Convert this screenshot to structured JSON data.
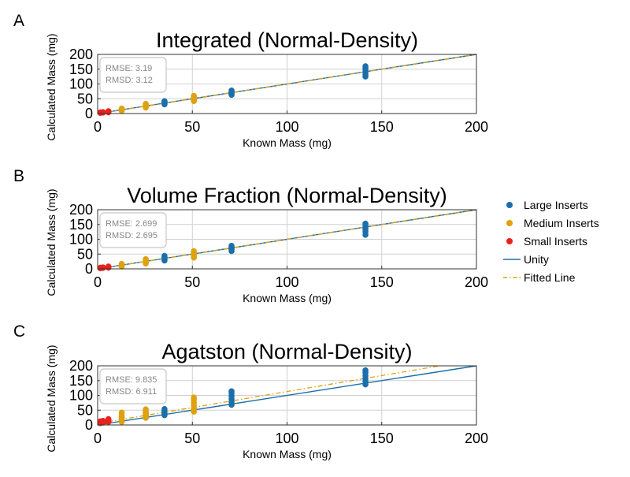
{
  "legend": {
    "placement": "right",
    "entries": [
      {
        "label": "Large Inserts",
        "kind": "dot",
        "color": "#1a6fab"
      },
      {
        "label": "Medium Inserts",
        "kind": "dot",
        "color": "#e0a10f"
      },
      {
        "label": "Small Inserts",
        "kind": "dot",
        "color": "#e8221c"
      },
      {
        "label": "Unity",
        "kind": "solid",
        "color": "#1a6fab"
      },
      {
        "label": "Fitted Line",
        "kind": "dashdot",
        "color": "#e0a10f"
      }
    ]
  },
  "chart_data": [
    {
      "panel_label": "A",
      "type": "scatter",
      "title": "Integrated (Normal-Density)",
      "xlabel": "Known Mass (mg)",
      "ylabel": "Calculated Mass (mg)",
      "xlim": [
        0,
        200
      ],
      "ylim": [
        0,
        200
      ],
      "xticks": [
        "0",
        "50",
        "100",
        "150",
        "200"
      ],
      "yticks": [
        "0",
        "50",
        "100",
        "150",
        "200"
      ],
      "grid": true,
      "stats": [
        "RMSE: 3.19",
        "RMSD: 3.12"
      ],
      "fitted_line": {
        "slope": 1.0,
        "intercept": 0
      },
      "series": [
        {
          "name": "Large Inserts",
          "color": "#1a6fab",
          "points": [
            [
              35.3,
              31
            ],
            [
              35.3,
              34
            ],
            [
              35.3,
              37
            ],
            [
              35.3,
              40
            ],
            [
              35.3,
              42
            ],
            [
              70.7,
              63
            ],
            [
              70.7,
              66
            ],
            [
              70.7,
              70
            ],
            [
              70.7,
              74
            ],
            [
              70.7,
              78
            ],
            [
              141.4,
              125
            ],
            [
              141.4,
              132
            ],
            [
              141.4,
              140
            ],
            [
              141.4,
              148
            ],
            [
              141.4,
              155
            ],
            [
              141.4,
              160
            ]
          ]
        },
        {
          "name": "Medium Inserts",
          "color": "#e0a10f",
          "points": [
            [
              12.7,
              9
            ],
            [
              12.7,
              12
            ],
            [
              12.7,
              15
            ],
            [
              12.7,
              17
            ],
            [
              25.4,
              20
            ],
            [
              25.4,
              24
            ],
            [
              25.4,
              27
            ],
            [
              25.4,
              30
            ],
            [
              25.4,
              33
            ],
            [
              50.8,
              42
            ],
            [
              50.8,
              46
            ],
            [
              50.8,
              50
            ],
            [
              50.8,
              55
            ],
            [
              50.8,
              60
            ]
          ]
        },
        {
          "name": "Small Inserts",
          "color": "#e8221c",
          "points": [
            [
              1.4,
              2
            ],
            [
              1.4,
              4
            ],
            [
              2.8,
              3
            ],
            [
              2.8,
              5
            ],
            [
              5.7,
              4
            ],
            [
              5.7,
              6
            ],
            [
              5.7,
              8
            ]
          ]
        }
      ]
    },
    {
      "panel_label": "B",
      "type": "scatter",
      "title": "Volume Fraction (Normal-Density)",
      "xlabel": "Known Mass (mg)",
      "ylabel": "Calculated Mass (mg)",
      "xlim": [
        0,
        200
      ],
      "ylim": [
        0,
        200
      ],
      "xticks": [
        "0",
        "50",
        "100",
        "150",
        "200"
      ],
      "yticks": [
        "0",
        "50",
        "100",
        "150",
        "200"
      ],
      "grid": true,
      "stats": [
        "RMSE: 2.699",
        "RMSD: 2.695"
      ],
      "fitted_line": {
        "slope": 1.0,
        "intercept": 0
      },
      "series": [
        {
          "name": "Large Inserts",
          "color": "#1a6fab",
          "points": [
            [
              35.3,
              28
            ],
            [
              35.3,
              32
            ],
            [
              35.3,
              36
            ],
            [
              35.3,
              40
            ],
            [
              35.3,
              44
            ],
            [
              70.7,
              60
            ],
            [
              70.7,
              65
            ],
            [
              70.7,
              70
            ],
            [
              70.7,
              74
            ],
            [
              70.7,
              78
            ],
            [
              141.4,
              115
            ],
            [
              141.4,
              125
            ],
            [
              141.4,
              133
            ],
            [
              141.4,
              140
            ],
            [
              141.4,
              147
            ],
            [
              141.4,
              153
            ]
          ]
        },
        {
          "name": "Medium Inserts",
          "color": "#e0a10f",
          "points": [
            [
              12.7,
              8
            ],
            [
              12.7,
              11
            ],
            [
              12.7,
              14
            ],
            [
              12.7,
              17
            ],
            [
              25.4,
              18
            ],
            [
              25.4,
              22
            ],
            [
              25.4,
              26
            ],
            [
              25.4,
              30
            ],
            [
              25.4,
              33
            ],
            [
              50.8,
              38
            ],
            [
              50.8,
              43
            ],
            [
              50.8,
              48
            ],
            [
              50.8,
              54
            ],
            [
              50.8,
              60
            ]
          ]
        },
        {
          "name": "Small Inserts",
          "color": "#e8221c",
          "points": [
            [
              1.4,
              2
            ],
            [
              1.4,
              4
            ],
            [
              2.8,
              3
            ],
            [
              2.8,
              5
            ],
            [
              5.7,
              4
            ],
            [
              5.7,
              6
            ],
            [
              5.7,
              8
            ]
          ]
        }
      ]
    },
    {
      "panel_label": "C",
      "type": "scatter",
      "title": "Agatston (Normal-Density)",
      "xlabel": "Known Mass (mg)",
      "ylabel": "Calculated Mass (mg)",
      "xlim": [
        0,
        200
      ],
      "ylim": [
        0,
        200
      ],
      "xticks": [
        "0",
        "50",
        "100",
        "150",
        "200"
      ],
      "yticks": [
        "0",
        "50",
        "100",
        "150",
        "200"
      ],
      "grid": true,
      "stats": [
        "RMSE: 9.835",
        "RMSD: 6.911"
      ],
      "fitted_line": {
        "slope": 1.08,
        "intercept": 5
      },
      "series": [
        {
          "name": "Large Inserts",
          "color": "#1a6fab",
          "points": [
            [
              12.7,
              15
            ],
            [
              12.7,
              25
            ],
            [
              25.4,
              25
            ],
            [
              25.4,
              32
            ],
            [
              25.4,
              40
            ],
            [
              35.3,
              33
            ],
            [
              35.3,
              40
            ],
            [
              35.3,
              47
            ],
            [
              35.3,
              54
            ],
            [
              70.7,
              68
            ],
            [
              70.7,
              78
            ],
            [
              70.7,
              88
            ],
            [
              70.7,
              98
            ],
            [
              70.7,
              108
            ],
            [
              70.7,
              114
            ],
            [
              141.4,
              137
            ],
            [
              141.4,
              147
            ],
            [
              141.4,
              157
            ],
            [
              141.4,
              167
            ],
            [
              141.4,
              177
            ],
            [
              141.4,
              185
            ]
          ]
        },
        {
          "name": "Medium Inserts",
          "color": "#e0a10f",
          "points": [
            [
              12.7,
              10
            ],
            [
              12.7,
              18
            ],
            [
              12.7,
              26
            ],
            [
              12.7,
              34
            ],
            [
              12.7,
              42
            ],
            [
              25.4,
              24
            ],
            [
              25.4,
              31
            ],
            [
              25.4,
              38
            ],
            [
              25.4,
              46
            ],
            [
              25.4,
              53
            ],
            [
              50.8,
              45
            ],
            [
              50.8,
              55
            ],
            [
              50.8,
              65
            ],
            [
              50.8,
              75
            ],
            [
              50.8,
              85
            ],
            [
              50.8,
              93
            ]
          ]
        },
        {
          "name": "Small Inserts",
          "color": "#e8221c",
          "points": [
            [
              1.4,
              6
            ],
            [
              1.4,
              12
            ],
            [
              2.8,
              8
            ],
            [
              2.8,
              14
            ],
            [
              5.7,
              10
            ],
            [
              5.7,
              16
            ],
            [
              5.7,
              20
            ]
          ]
        }
      ]
    }
  ]
}
